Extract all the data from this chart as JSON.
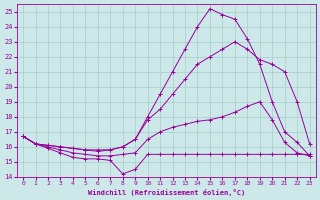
{
  "xlabel": "Windchill (Refroidissement éolien,°C)",
  "bg_color": "#cce8e8",
  "line_color": "#990099",
  "grid_color": "#aacccc",
  "xlim": [
    -0.5,
    23.5
  ],
  "ylim": [
    14,
    25.5
  ],
  "xticks": [
    0,
    1,
    2,
    3,
    4,
    5,
    6,
    7,
    8,
    9,
    10,
    11,
    12,
    13,
    14,
    15,
    16,
    17,
    18,
    19,
    20,
    21,
    22,
    23
  ],
  "yticks": [
    14,
    15,
    16,
    17,
    18,
    19,
    20,
    21,
    22,
    23,
    24,
    25
  ],
  "lines": [
    {
      "x": [
        0,
        1,
        2,
        3,
        4,
        5,
        6,
        7,
        8,
        9,
        10,
        11,
        12,
        13,
        14,
        15,
        16,
        17,
        18,
        19,
        20,
        21,
        22,
        23
      ],
      "y": [
        16.7,
        16.2,
        15.9,
        15.6,
        15.3,
        15.2,
        15.2,
        15.1,
        14.2,
        14.5,
        15.5,
        15.5,
        15.5,
        15.5,
        15.5,
        15.5,
        15.5,
        15.5,
        15.5,
        15.5,
        15.5,
        15.5,
        15.5,
        15.5
      ]
    },
    {
      "x": [
        0,
        1,
        2,
        3,
        4,
        5,
        6,
        7,
        8,
        9,
        10,
        11,
        12,
        13,
        14,
        15,
        16,
        17,
        18,
        19,
        20,
        21,
        22,
        23
      ],
      "y": [
        16.7,
        16.2,
        16.0,
        15.8,
        15.6,
        15.5,
        15.4,
        15.4,
        15.5,
        15.6,
        16.5,
        17.0,
        17.3,
        17.5,
        17.7,
        17.8,
        18.0,
        18.3,
        18.7,
        19.0,
        17.8,
        16.3,
        15.6,
        15.4
      ]
    },
    {
      "x": [
        0,
        1,
        2,
        3,
        4,
        5,
        6,
        7,
        8,
        9,
        10,
        11,
        12,
        13,
        14,
        15,
        16,
        17,
        18,
        19,
        20,
        21,
        22,
        23
      ],
      "y": [
        16.7,
        16.2,
        16.1,
        16.0,
        15.9,
        15.8,
        15.7,
        15.8,
        16.0,
        16.5,
        17.8,
        18.5,
        19.5,
        20.5,
        21.5,
        22.0,
        22.5,
        23.0,
        22.5,
        21.8,
        21.5,
        21.0,
        19.0,
        16.2
      ]
    },
    {
      "x": [
        0,
        1,
        2,
        3,
        4,
        5,
        6,
        7,
        8,
        9,
        10,
        11,
        12,
        13,
        14,
        15,
        16,
        17,
        18,
        19,
        20,
        21,
        22,
        23
      ],
      "y": [
        16.7,
        16.2,
        16.1,
        16.0,
        15.9,
        15.8,
        15.8,
        15.8,
        16.0,
        16.5,
        18.0,
        19.5,
        21.0,
        22.5,
        24.0,
        25.2,
        24.8,
        24.5,
        23.2,
        21.5,
        19.0,
        17.0,
        16.3,
        15.4
      ]
    }
  ]
}
